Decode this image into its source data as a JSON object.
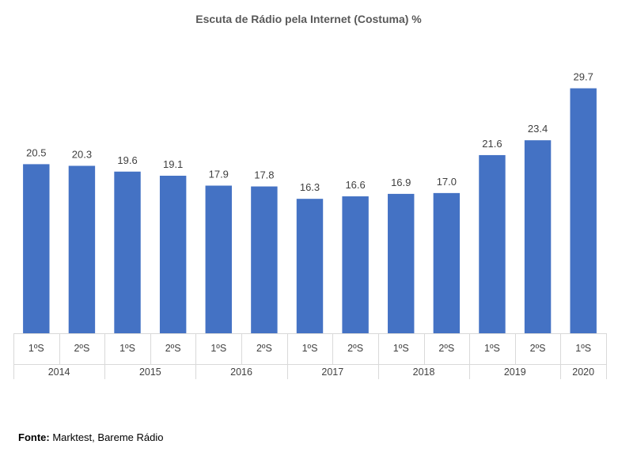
{
  "chart_data": {
    "type": "bar",
    "title": "Escuta de Rádio pela Internet (Costuma) %",
    "xlabel": "",
    "ylabel": "",
    "ylim": [
      0,
      31
    ],
    "grid": false,
    "bar_color": "#4472c4",
    "categories": [
      {
        "period": "1ºS",
        "year": "2014"
      },
      {
        "period": "2ºS",
        "year": "2014"
      },
      {
        "period": "1ºS",
        "year": "2015"
      },
      {
        "period": "2ºS",
        "year": "2015"
      },
      {
        "period": "1ºS",
        "year": "2016"
      },
      {
        "period": "2ºS",
        "year": "2016"
      },
      {
        "period": "1ºS",
        "year": "2017"
      },
      {
        "period": "2ºS",
        "year": "2017"
      },
      {
        "period": "1ºS",
        "year": "2018"
      },
      {
        "period": "2ºS",
        "year": "2018"
      },
      {
        "period": "1ºS",
        "year": "2019"
      },
      {
        "period": "2ºS",
        "year": "2019"
      },
      {
        "period": "1ºS",
        "year": "2020"
      }
    ],
    "years": [
      "2014",
      "2015",
      "2016",
      "2017",
      "2018",
      "2019",
      "2020"
    ],
    "values": [
      20.5,
      20.3,
      19.6,
      19.1,
      17.9,
      17.8,
      16.3,
      16.6,
      16.9,
      17.0,
      21.6,
      23.4,
      29.7
    ],
    "value_labels": [
      "20.5",
      "20.3",
      "19.6",
      "19.1",
      "17.9",
      "17.8",
      "16.3",
      "16.6",
      "16.9",
      "17.0",
      "21.6",
      "23.4",
      "29.7"
    ]
  },
  "source": {
    "label": "Fonte:",
    "text": " Marktest, Bareme Rádio"
  }
}
